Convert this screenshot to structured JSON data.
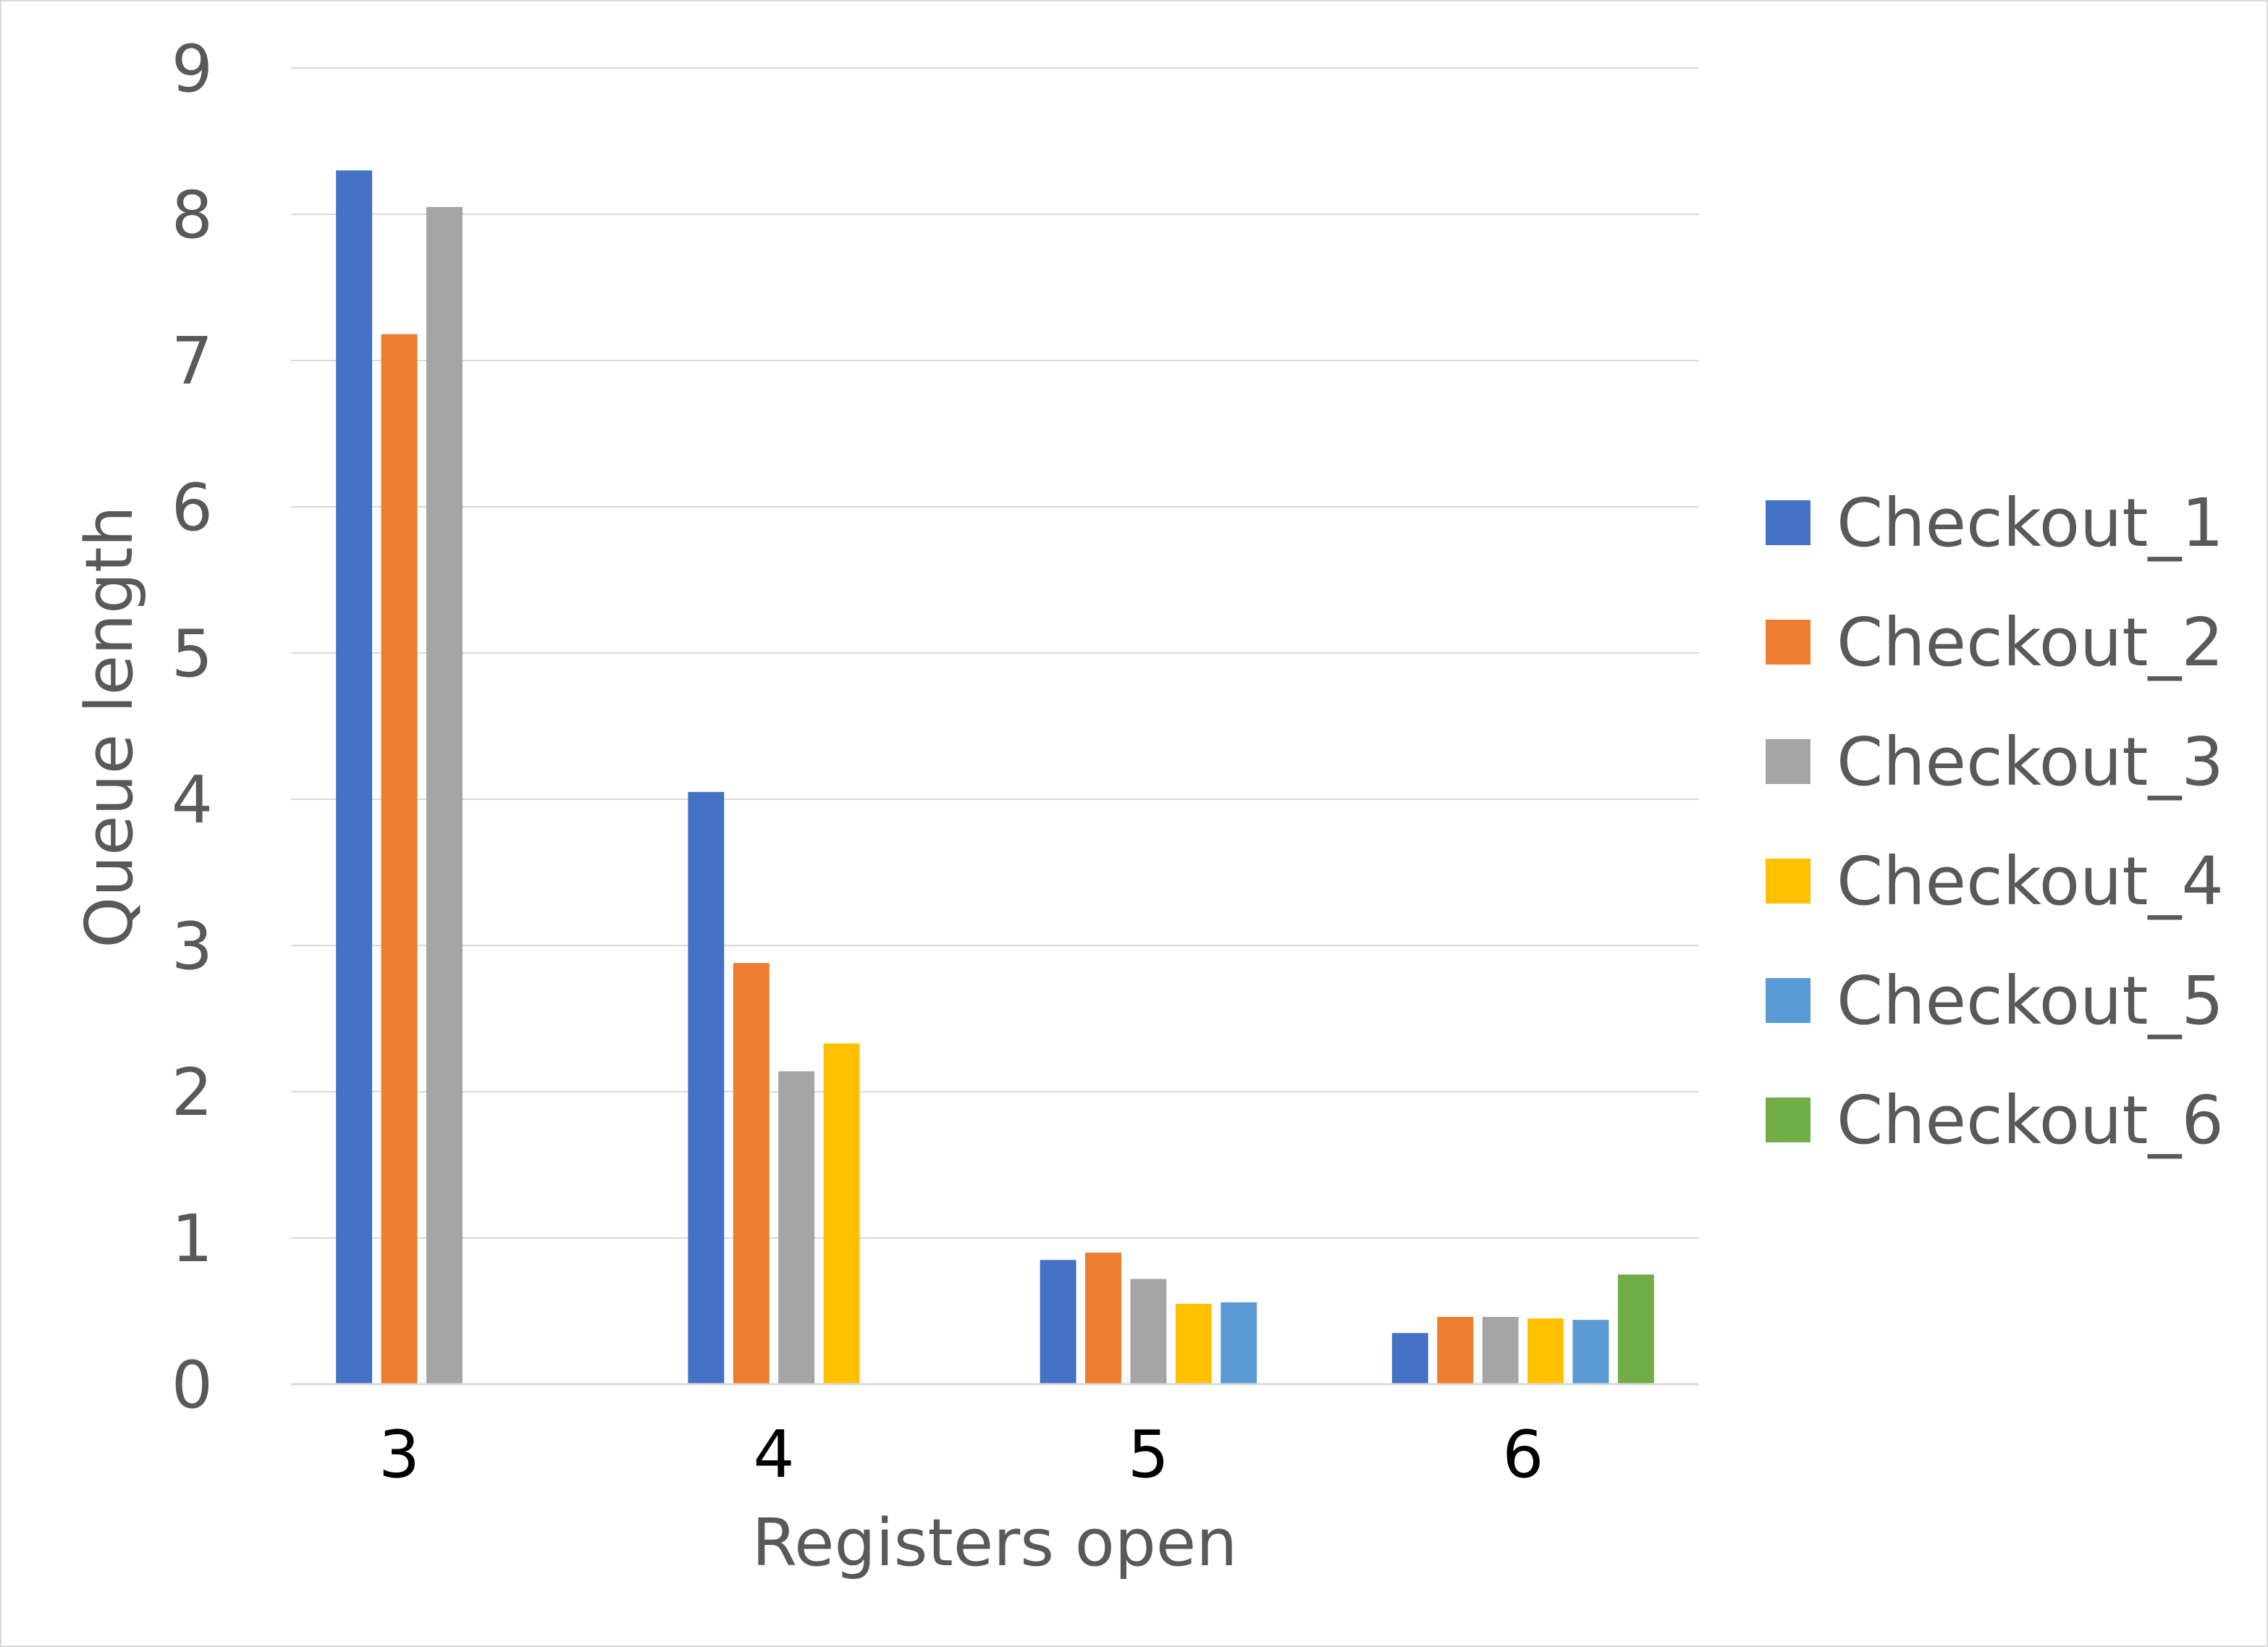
{
  "chart_data": {
    "type": "bar",
    "categories": [
      "3",
      "4",
      "5",
      "6"
    ],
    "series": [
      {
        "name": "Checkout_1",
        "color": "#4472c4",
        "values": [
          8.3,
          4.05,
          0.85,
          0.35
        ]
      },
      {
        "name": "Checkout_2",
        "color": "#ed7d31",
        "values": [
          7.18,
          2.88,
          0.9,
          0.46
        ]
      },
      {
        "name": "Checkout_3",
        "color": "#a5a5a5",
        "values": [
          8.05,
          2.14,
          0.72,
          0.46
        ]
      },
      {
        "name": "Checkout_4",
        "color": "#ffc000",
        "values": [
          null,
          2.33,
          0.55,
          0.45
        ]
      },
      {
        "name": "Checkout_5",
        "color": "#5b9bd5",
        "values": [
          null,
          null,
          0.56,
          0.44
        ]
      },
      {
        "name": "Checkout_6",
        "color": "#70ad47",
        "values": [
          null,
          null,
          null,
          0.75
        ]
      }
    ],
    "xlabel": "Registers open",
    "ylabel": "Queue length",
    "ylim": [
      0,
      9
    ],
    "yticks": [
      0,
      1,
      2,
      3,
      4,
      5,
      6,
      7,
      8,
      9
    ],
    "grid": true,
    "legend_position": "right"
  }
}
